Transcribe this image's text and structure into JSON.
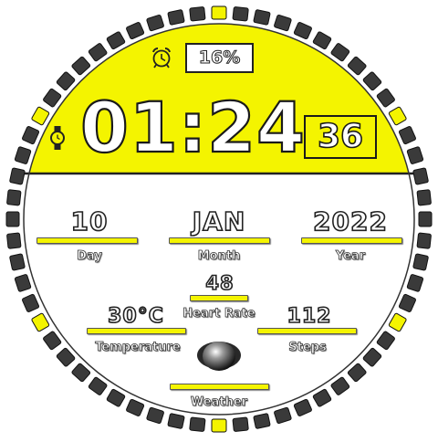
{
  "watch": {
    "battery": "16%",
    "time": "01:24",
    "seconds": "36",
    "day_value": "10",
    "day_label": "Day",
    "month_value": "JAN",
    "month_label": "Month",
    "year_value": "2022",
    "year_label": "Year",
    "heart_rate_value": "48",
    "heart_rate_label": "Heart Rate",
    "temperature_value": "30°C",
    "temperature_label": "Temperature",
    "steps_value": "112",
    "steps_label": "Steps",
    "weather_label": "Weather"
  },
  "icons": {
    "alarm": "alarm-clock-icon",
    "watch": "wristwatch-icon",
    "weather": "weather-icon"
  },
  "colors": {
    "accent": "#f4f400",
    "segment_dark": "#3a3a3a",
    "background": "#ffffff"
  },
  "bezel": {
    "segment_count": 60,
    "accent_segments": [
      0,
      10,
      20,
      30,
      40,
      50
    ]
  }
}
